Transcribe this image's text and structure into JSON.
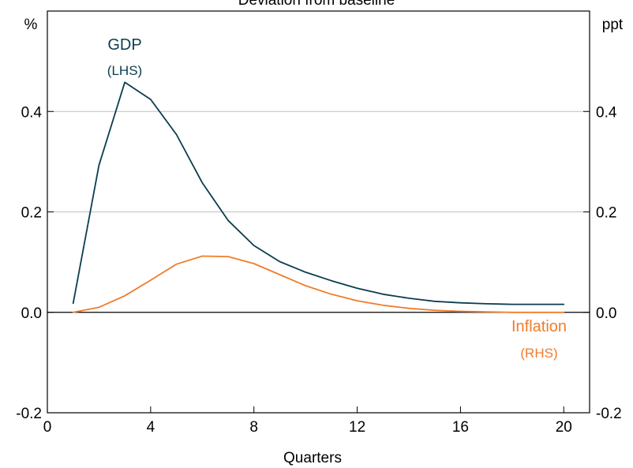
{
  "chart_data": {
    "type": "line",
    "title": "Deviation from baseline",
    "xlabel": "Quarters",
    "left_unit": "%",
    "right_unit": "ppt",
    "xlim": [
      0,
      21
    ],
    "ylim": [
      -0.2,
      0.6
    ],
    "x_ticks": [
      0,
      4,
      8,
      12,
      16,
      20
    ],
    "y_ticks": [
      -0.2,
      0.0,
      0.2,
      0.4
    ],
    "x_tick_labels": [
      "0",
      "4",
      "8",
      "12",
      "16",
      "20"
    ],
    "y_tick_labels": [
      "-0.2",
      "0.0",
      "0.2",
      "0.4"
    ],
    "grid": true,
    "series": [
      {
        "name": "GDP",
        "axis_label": "(LHS)",
        "color": "#0b3d4f",
        "x": [
          1,
          2,
          3,
          4,
          5,
          6,
          7,
          8,
          9,
          10,
          11,
          12,
          13,
          14,
          15,
          16,
          17,
          18,
          19,
          20
        ],
        "values": [
          0.018,
          0.293,
          0.458,
          0.424,
          0.354,
          0.258,
          0.183,
          0.133,
          0.101,
          0.08,
          0.063,
          0.048,
          0.036,
          0.028,
          0.022,
          0.019,
          0.017,
          0.016,
          0.016,
          0.016
        ]
      },
      {
        "name": "Inflation",
        "axis_label": "(RHS)",
        "color": "#f07c2a",
        "x": [
          1,
          2,
          3,
          4,
          5,
          6,
          7,
          8,
          9,
          10,
          11,
          12,
          13,
          14,
          15,
          16,
          17,
          18,
          19,
          20
        ],
        "values": [
          0.0,
          0.01,
          0.033,
          0.064,
          0.096,
          0.112,
          0.111,
          0.097,
          0.075,
          0.053,
          0.036,
          0.023,
          0.014,
          0.008,
          0.004,
          0.002,
          0.001,
          0.0,
          0.0,
          0.0
        ]
      }
    ]
  }
}
